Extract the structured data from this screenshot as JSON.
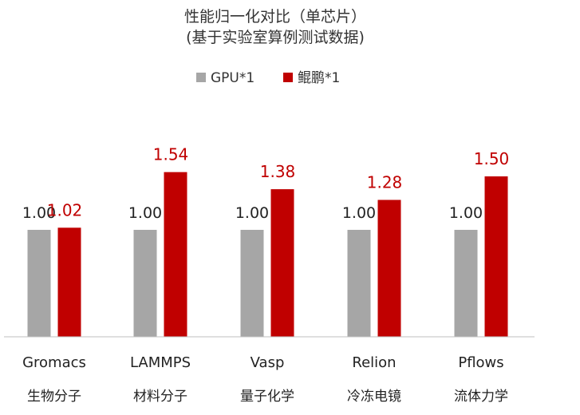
{
  "chart_data": {
    "type": "bar",
    "title": "性能归一化对比（单芯片）",
    "subtitle": "(基于实验室算例测试数据)",
    "categories": [
      "Gromacs",
      "LAMMPS",
      "Vasp",
      "Relion",
      "Pflows"
    ],
    "categories_sub": [
      "生物分子",
      "材料分子",
      "量子化学",
      "冷冻电镜",
      "流体力学"
    ],
    "series": [
      {
        "name": "GPU*1",
        "values": [
          1.0,
          1.0,
          1.0,
          1.0,
          1.0
        ],
        "labels": [
          "1.00",
          "1.00",
          "1.00",
          "1.00",
          "1.00"
        ],
        "color": "#a6a6a6"
      },
      {
        "name": "鲲鹏*1",
        "values": [
          1.02,
          1.54,
          1.38,
          1.28,
          1.5
        ],
        "labels": [
          "1.02",
          "1.54",
          "1.38",
          "1.28",
          "1.50"
        ],
        "color": "#c00000"
      }
    ],
    "ylim": [
      0,
      1.8
    ],
    "grid": false,
    "legend_position": "top"
  }
}
